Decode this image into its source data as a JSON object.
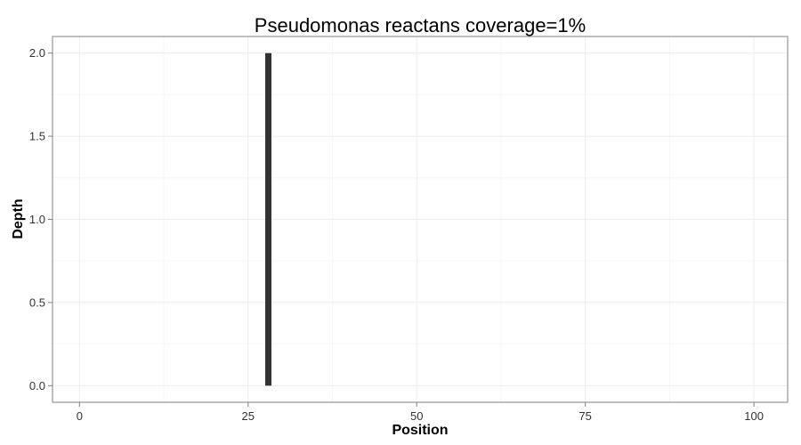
{
  "chart_data": {
    "type": "bar",
    "title": "Pseudomonas reactans coverage=1%",
    "xlabel": "Position",
    "ylabel": "Depth",
    "xlim": [
      -4,
      105
    ],
    "ylim": [
      -0.1,
      2.1
    ],
    "x_ticks": [
      0,
      25,
      50,
      75,
      100
    ],
    "x_tick_labels": [
      "0",
      "25",
      "50",
      "75",
      "100"
    ],
    "y_ticks": [
      0,
      0.5,
      1,
      1.5,
      2
    ],
    "y_tick_labels": [
      "0.0",
      "0.5",
      "1.0",
      "1.5",
      "2.0"
    ],
    "grid": true,
    "bar_color": "#333333",
    "series": [
      {
        "x": [
          28
        ],
        "values": [
          2
        ]
      }
    ]
  }
}
